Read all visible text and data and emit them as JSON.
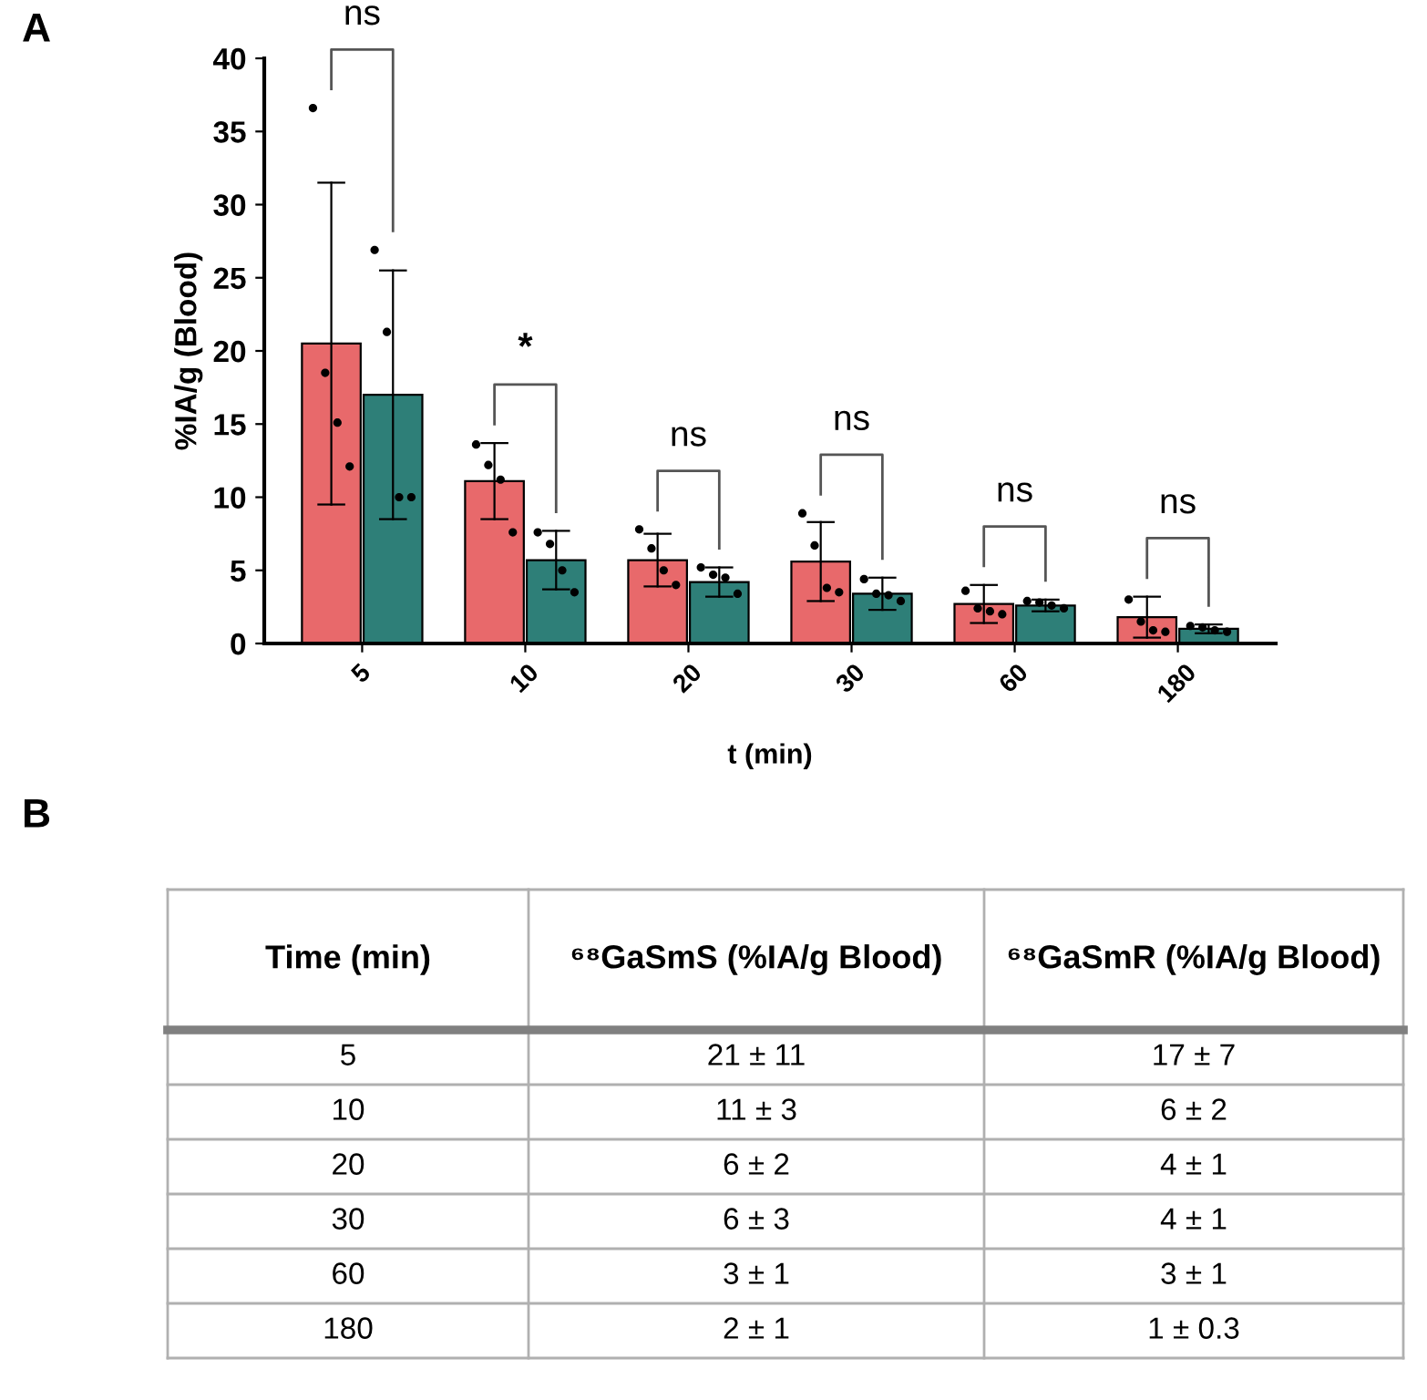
{
  "chart_data": [
    {
      "type": "bar",
      "title": "A",
      "xlabel": "t (min)",
      "ylabel": "%IA/g (Blood)",
      "categories": [
        "5",
        "10",
        "20",
        "30",
        "60",
        "180"
      ],
      "ylim": [
        0,
        40
      ],
      "yticks": [
        0,
        5,
        10,
        15,
        20,
        25,
        30,
        35,
        40
      ],
      "grid": false,
      "legend": false,
      "series": [
        {
          "color": "#e8696b",
          "values": [
            20.5,
            11.1,
            5.7,
            5.6,
            2.7,
            1.8
          ],
          "errors": [
            11,
            2.6,
            1.8,
            2.7,
            1.3,
            1.4
          ]
        },
        {
          "color": "#2e7f78",
          "values": [
            17.0,
            5.7,
            4.2,
            3.4,
            2.6,
            1.0
          ],
          "errors": [
            8.5,
            2.0,
            1.0,
            1.1,
            0.4,
            0.3
          ]
        },
        {
          "type": "scatter",
          "color": "#000000",
          "marker": "circle",
          "x": [
            "5",
            "5",
            "5",
            "5",
            "10",
            "10",
            "10",
            "10",
            "20",
            "20",
            "20",
            "20",
            "30",
            "30",
            "30",
            "30",
            "60",
            "60",
            "60",
            "60",
            "180",
            "180",
            "180",
            "180"
          ],
          "values": [
            36.6,
            18.5,
            15.1,
            12.1,
            13.6,
            12.2,
            11.2,
            7.6,
            7.8,
            6.5,
            5.0,
            4.0,
            8.9,
            6.7,
            3.8,
            3.5,
            3.6,
            2.4,
            2.2,
            2.0,
            3.0,
            1.5,
            0.9,
            0.8
          ]
        },
        {
          "type": "scatter",
          "color": "#000000",
          "marker": "circle",
          "x": [
            "5",
            "5",
            "5",
            "5",
            "10",
            "10",
            "10",
            "10",
            "20",
            "20",
            "20",
            "20",
            "30",
            "30",
            "30",
            "30",
            "60",
            "60",
            "60",
            "60",
            "180",
            "180",
            "180",
            "180"
          ],
          "values": [
            26.9,
            21.3,
            10.0,
            10.0,
            7.6,
            6.8,
            5.0,
            3.5,
            5.2,
            4.7,
            4.5,
            3.4,
            4.4,
            3.4,
            3.3,
            2.9,
            2.9,
            2.8,
            2.6,
            2.4,
            1.2,
            1.1,
            0.9,
            0.8
          ]
        }
      ],
      "annotations": [
        "ns",
        "*",
        "ns",
        "ns",
        "ns",
        "ns"
      ]
    },
    {
      "type": "other",
      "title": "B",
      "annotations": [
        "Time (min)",
        "⁶⁸GaSmS (%IA/g Blood)",
        "⁶⁸GaSmR (%IA/g Blood)",
        "5",
        "21 ± 11",
        "17 ± 7",
        "10",
        "11 ± 3",
        "6 ± 2",
        "20",
        "6 ± 2",
        "4 ± 1",
        "30",
        "6 ± 3",
        "4 ± 1",
        "60",
        "3 ± 1",
        "3 ± 1",
        "180",
        "2 ± 1",
        "1 ± 0.3"
      ]
    }
  ]
}
